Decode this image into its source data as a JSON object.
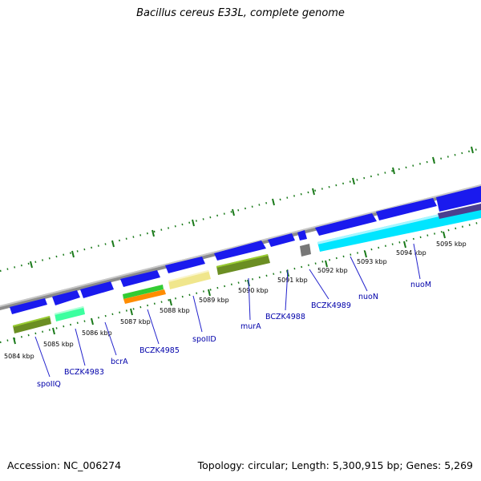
{
  "title": "Bacillus cereus E33L, complete genome",
  "footer": {
    "accession": "Accession: NC_006274",
    "summary": "Topology: circular; Length: 5,300,915 bp; Genes: 5,269"
  },
  "colors": {
    "backbone": "#8c8c8c",
    "tick": "#1a7a1a",
    "gene_arrow": "#1a1aee",
    "label_text": "#0000aa",
    "cds_olive": "#6b8e23",
    "cds_cyan": "#00e5ff",
    "cds_spring": "#3cff9f",
    "cds_green": "#33cc33",
    "cds_orange": "#ff8c00",
    "cds_khaki": "#f0e68c",
    "cds_gray": "#777777",
    "cds_purple": "#4b3f8f"
  },
  "kbp_labels": [
    "5084 kbp",
    "5085 kbp",
    "5086 kbp",
    "5087 kbp",
    "5088 kbp",
    "5089 kbp",
    "5090 kbp",
    "5091 kbp",
    "5092 kbp",
    "5093 kbp",
    "5094 kbp",
    "5095 kbp"
  ],
  "gene_labels": [
    "spoIIQ",
    "BCZK4983",
    "bcrA",
    "BCZK4985",
    "spoIID",
    "murA",
    "BCZK4988",
    "BCZK4989",
    "nuoN",
    "nuoM"
  ]
}
